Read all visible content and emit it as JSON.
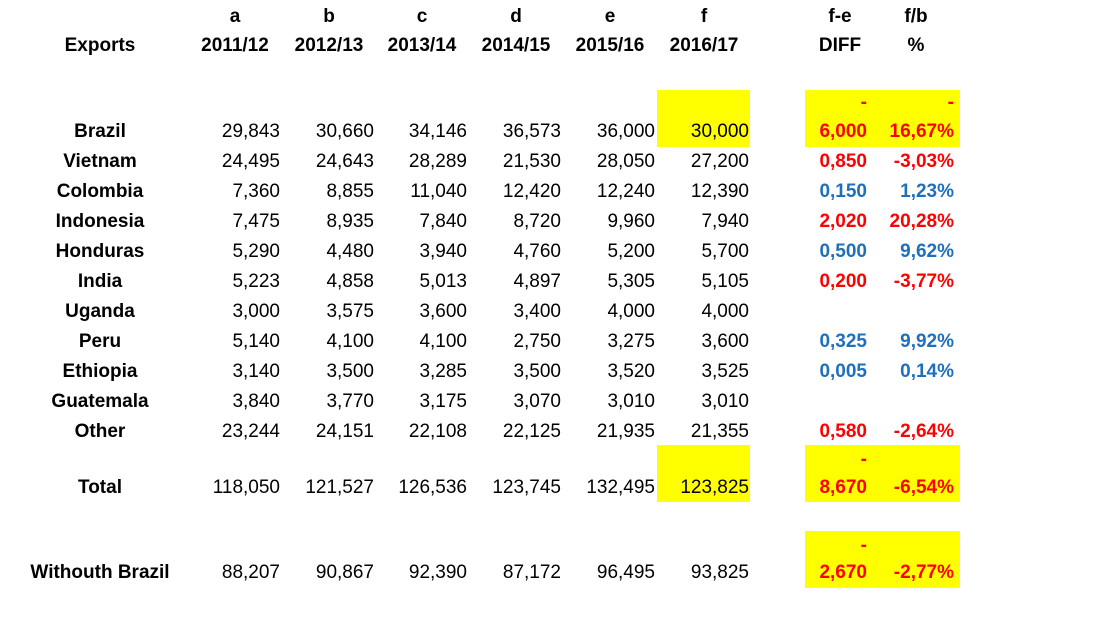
{
  "header": {
    "letters": [
      "a",
      "b",
      "c",
      "d",
      "e",
      "f"
    ],
    "row_label": "Exports",
    "years": [
      "2011/12",
      "2012/13",
      "2013/14",
      "2014/15",
      "2015/16",
      "2016/17"
    ],
    "diff_top": "f-e",
    "diff_bottom": "DIFF",
    "pct_top": "f/b",
    "pct_bottom": "%"
  },
  "rows": [
    {
      "country": "Brazil",
      "values": [
        "29,843",
        "30,660",
        "34,146",
        "36,573",
        "36,000",
        "30,000"
      ],
      "diff_sign": "-",
      "diff": "6,000",
      "pct_sign": "-",
      "pct": "16,67%",
      "diff_color": "red",
      "pct_color": "red"
    },
    {
      "country": "Vietnam",
      "values": [
        "24,495",
        "24,643",
        "28,289",
        "21,530",
        "28,050",
        "27,200"
      ],
      "diff": "0,850",
      "pct": "-3,03%",
      "diff_color": "red",
      "pct_color": "red"
    },
    {
      "country": "Colombia",
      "values": [
        "7,360",
        "8,855",
        "11,040",
        "12,420",
        "12,240",
        "12,390"
      ],
      "diff": "0,150",
      "pct": "1,23%",
      "diff_color": "blue",
      "pct_color": "blue"
    },
    {
      "country": "Indonesia",
      "values": [
        "7,475",
        "8,935",
        "7,840",
        "8,720",
        "9,960",
        "7,940"
      ],
      "diff": "2,020",
      "pct": "20,28%",
      "diff_color": "red",
      "pct_color": "red"
    },
    {
      "country": "Honduras",
      "values": [
        "5,290",
        "4,480",
        "3,940",
        "4,760",
        "5,200",
        "5,700"
      ],
      "diff": "0,500",
      "pct": "9,62%",
      "diff_color": "blue",
      "pct_color": "blue"
    },
    {
      "country": "India",
      "values": [
        "5,223",
        "4,858",
        "5,013",
        "4,897",
        "5,305",
        "5,105"
      ],
      "diff": "0,200",
      "pct": "-3,77%",
      "diff_color": "red",
      "pct_color": "red"
    },
    {
      "country": "Uganda",
      "values": [
        "3,000",
        "3,575",
        "3,600",
        "3,400",
        "4,000",
        "4,000"
      ],
      "diff": "",
      "pct": ""
    },
    {
      "country": "Peru",
      "values": [
        "5,140",
        "4,100",
        "4,100",
        "2,750",
        "3,275",
        "3,600"
      ],
      "diff": "0,325",
      "pct": "9,92%",
      "diff_color": "blue",
      "pct_color": "blue"
    },
    {
      "country": "Ethiopia",
      "values": [
        "3,140",
        "3,500",
        "3,285",
        "3,500",
        "3,520",
        "3,525"
      ],
      "diff": "0,005",
      "pct": "0,14%",
      "diff_color": "blue",
      "pct_color": "blue"
    },
    {
      "country": "Guatemala",
      "values": [
        "3,840",
        "3,770",
        "3,175",
        "3,070",
        "3,010",
        "3,010"
      ],
      "diff": "",
      "pct": ""
    },
    {
      "country": "Other",
      "values": [
        "23,244",
        "24,151",
        "22,108",
        "22,125",
        "21,935",
        "21,355"
      ],
      "diff": "0,580",
      "pct": "-2,64%",
      "diff_color": "red",
      "pct_color": "red"
    }
  ],
  "total": {
    "country": "Total",
    "values": [
      "118,050",
      "121,527",
      "126,536",
      "123,745",
      "132,495",
      "123,825"
    ],
    "diff_sign": "-",
    "diff": "8,670",
    "pct": "-6,54%"
  },
  "without": {
    "country": "Withouth  Brazil",
    "values": [
      "88,207",
      "90,867",
      "92,390",
      "87,172",
      "96,495",
      "93,825"
    ],
    "diff_sign": "-",
    "diff": "2,670",
    "pct": "-2,77%"
  },
  "colors": {
    "highlight": "#ffff00",
    "negative": "#ff0000",
    "positive": "#1f6fbf"
  }
}
